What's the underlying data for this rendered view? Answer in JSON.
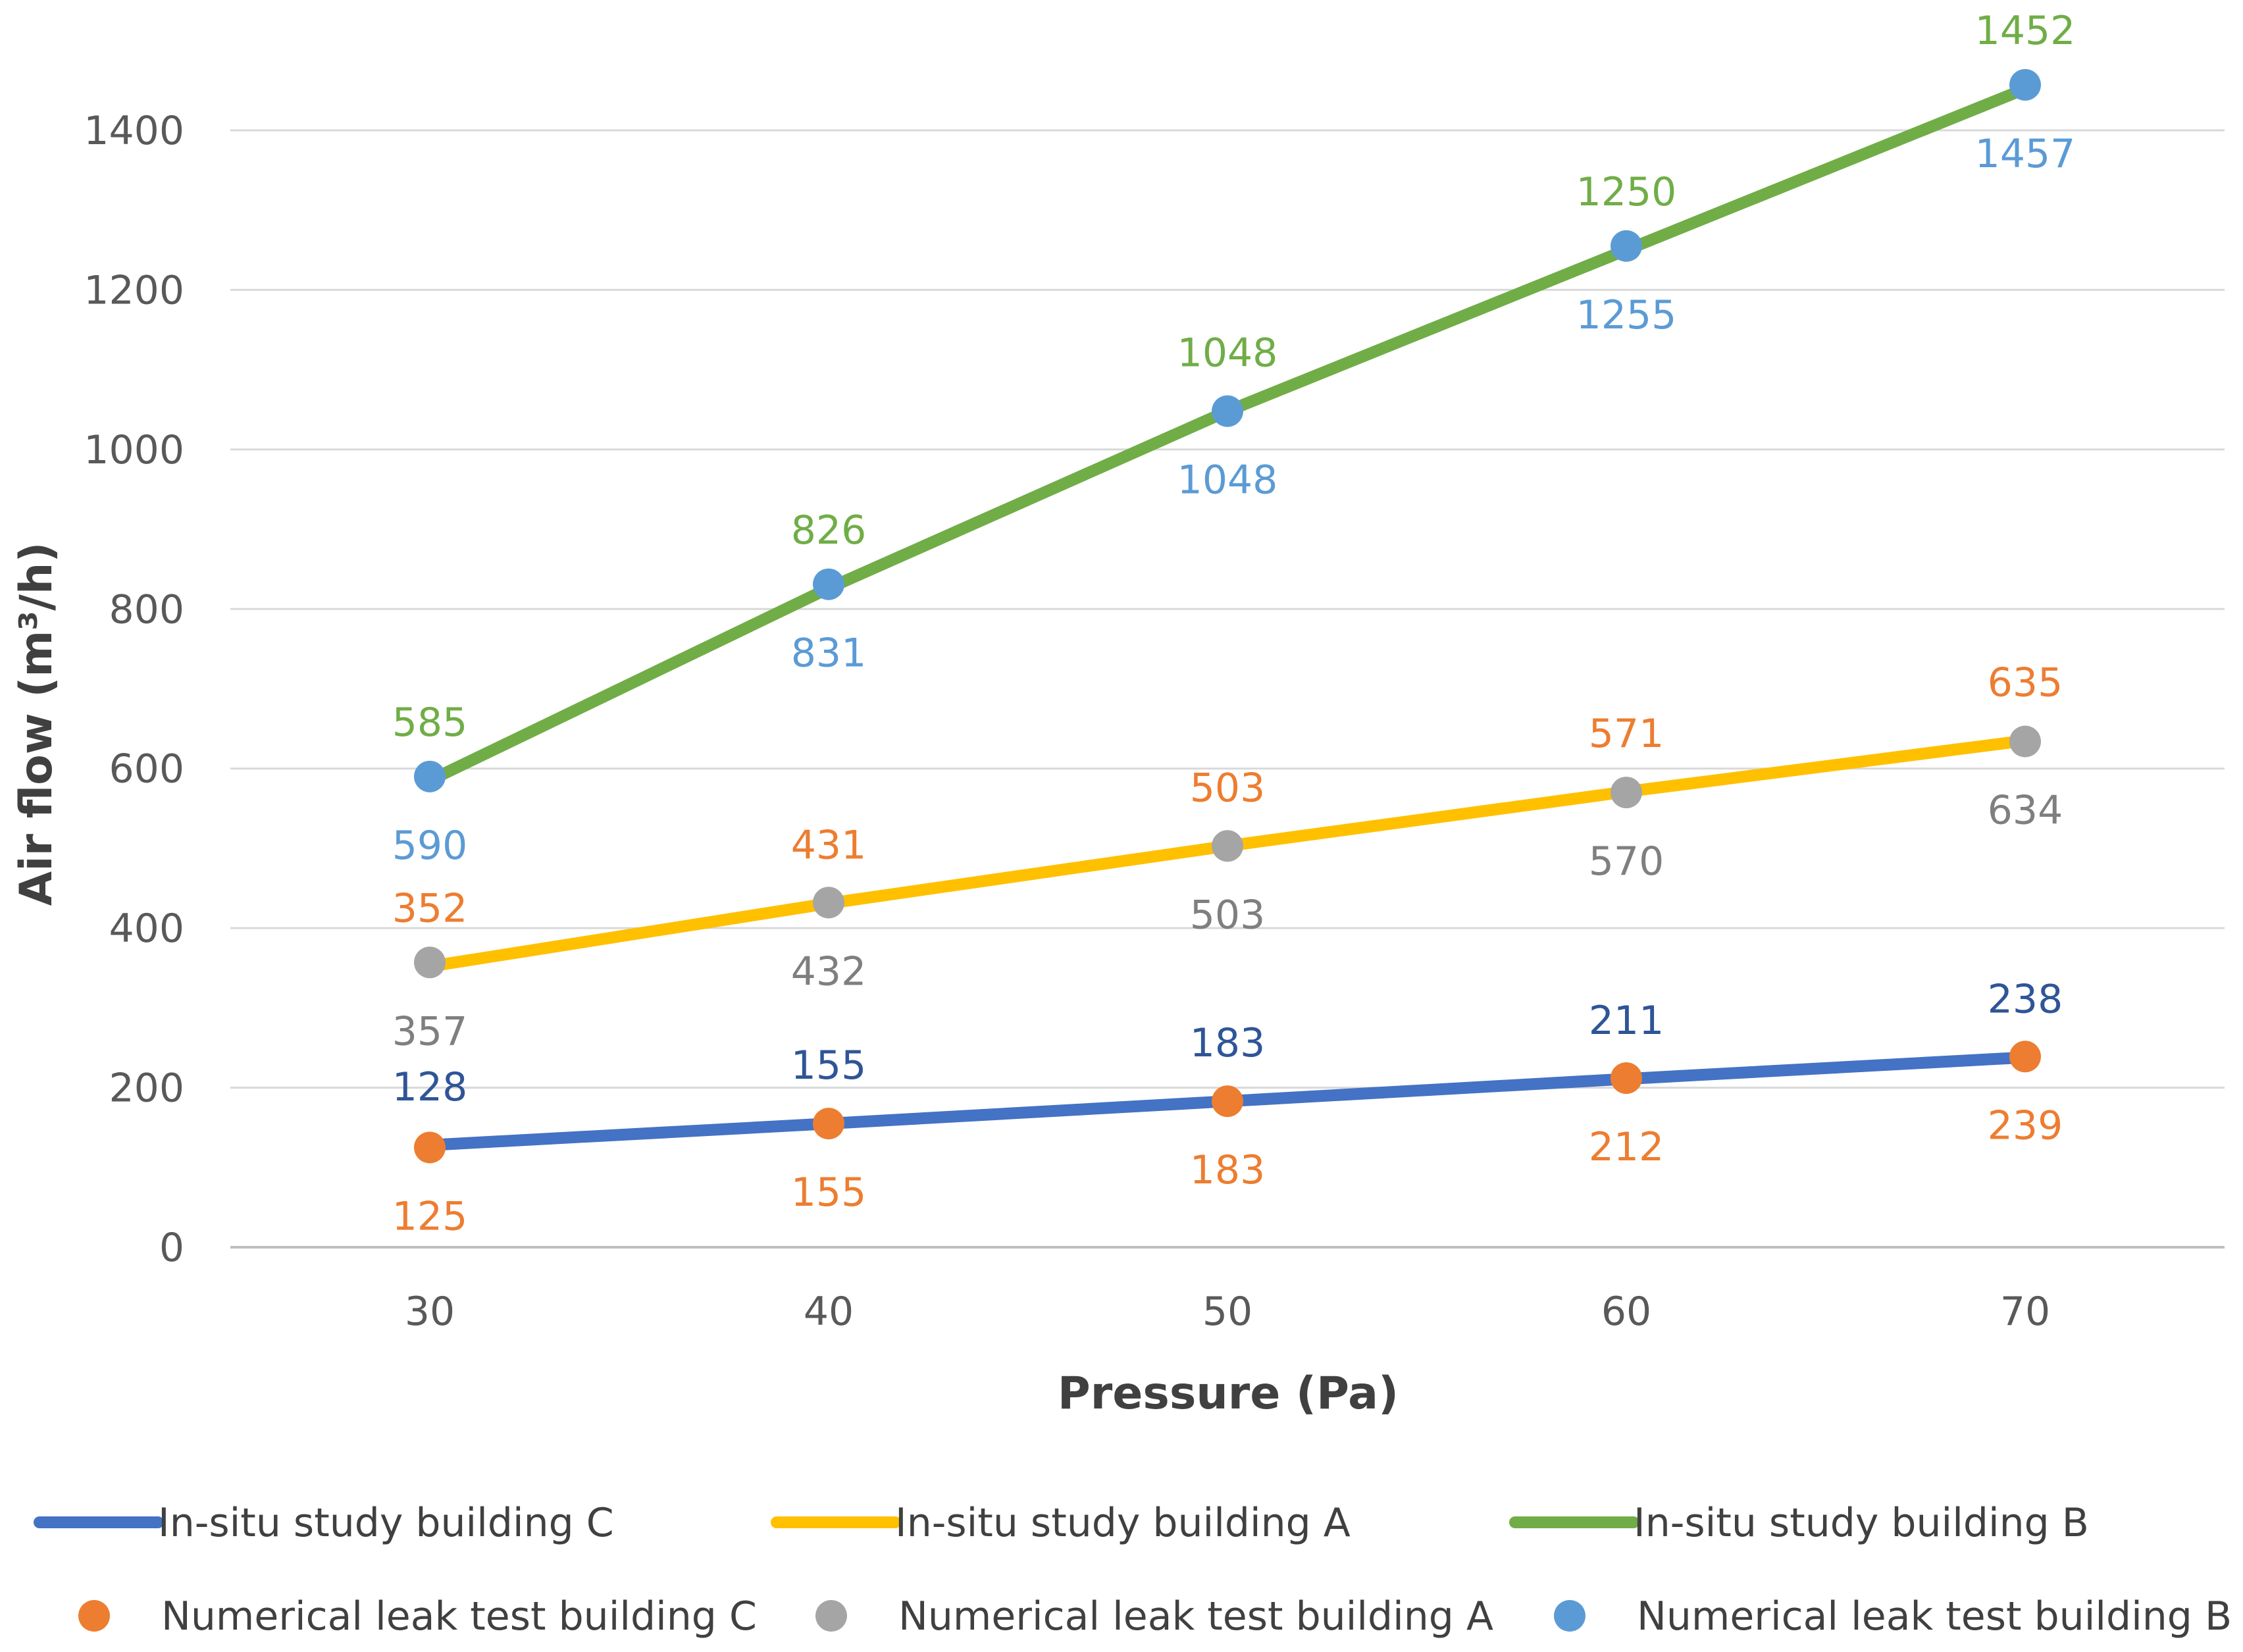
{
  "chart_data": {
    "type": "line",
    "title": "",
    "xlabel": "Pressure (Pa)",
    "ylabel": "Air flow (m³/h)",
    "categories": [
      "30",
      "40",
      "50",
      "60",
      "70"
    ],
    "x": [
      30,
      40,
      50,
      60,
      70
    ],
    "ylim": [
      0,
      1400
    ],
    "yticks": [
      0,
      200,
      400,
      600,
      800,
      1000,
      1200,
      1400
    ],
    "grid": "horizontal",
    "legend_position": "bottom",
    "series": [
      {
        "name": "In-situ study building C",
        "kind": "line",
        "color": "#4472C4",
        "label_color": "#2F5597",
        "label_pos": "above",
        "values": [
          128,
          155,
          183,
          211,
          238
        ]
      },
      {
        "name": "In-situ study building A",
        "kind": "line",
        "color": "#FFC000",
        "label_color": "#ED7D31",
        "label_pos": "above",
        "values": [
          352,
          431,
          503,
          571,
          635
        ]
      },
      {
        "name": "In-situ study building B",
        "kind": "line",
        "color": "#70AD47",
        "label_color": "#70AD47",
        "label_pos": "above",
        "values": [
          585,
          826,
          1048,
          1250,
          1452
        ]
      },
      {
        "name": "Numerical leak test building C",
        "kind": "marker",
        "color": "#ED7D31",
        "label_color": "#ED7D31",
        "label_pos": "below",
        "values": [
          125,
          155,
          183,
          212,
          239
        ]
      },
      {
        "name": "Numerical leak test building A",
        "kind": "marker",
        "color": "#A5A5A5",
        "label_color": "#7F7F7F",
        "label_pos": "below",
        "values": [
          357,
          432,
          503,
          570,
          634
        ]
      },
      {
        "name": "Numerical leak test building B",
        "kind": "marker",
        "color": "#5B9BD5",
        "label_color": "#5B9BD5",
        "label_pos": "below",
        "values": [
          590,
          831,
          1048,
          1255,
          1457
        ]
      }
    ]
  }
}
